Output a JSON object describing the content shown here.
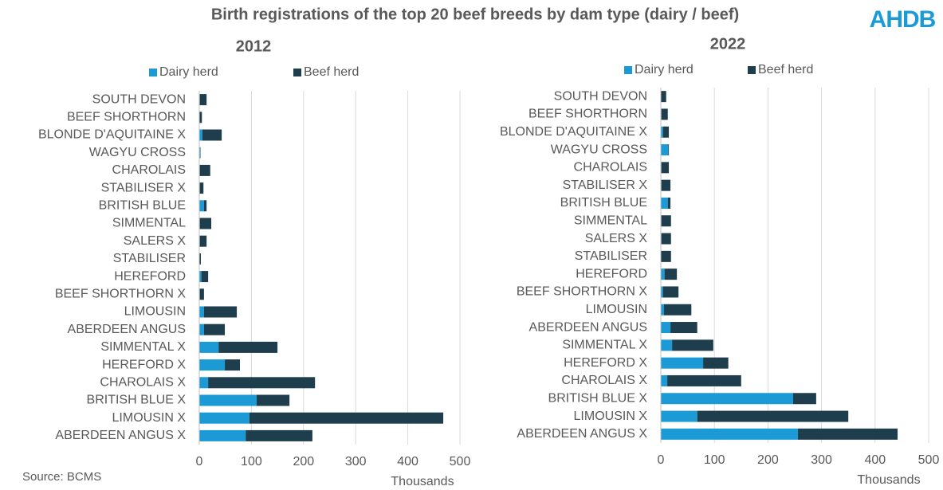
{
  "title": "Birth registrations of the top 20 beef breeds by dam type (dairy / beef)",
  "logo": "AHDB",
  "source": "Source: BCMS",
  "chart_data": [
    {
      "type": "stacked-barh",
      "title": "2012",
      "xlabel": "Thousands",
      "categories": [
        "SOUTH DEVON",
        "BEEF SHORTHORN",
        "BLONDE D'AQUITAINE X",
        "WAGYU CROSS",
        "CHAROLAIS",
        "STABILISER X",
        "BRITISH BLUE",
        "SIMMENTAL",
        "SALERS X",
        "STABILISER",
        "HEREFORD",
        "BEEF SHORTHORN X",
        "LIMOUSIN",
        "ABERDEEN ANGUS",
        "SIMMENTAL X",
        "HEREFORD X",
        "CHAROLAIS X",
        "BRITISH BLUE X",
        "LIMOUSIN X",
        "ABERDEEN ANGUS X"
      ],
      "series": [
        {
          "name": "Dairy herd",
          "color": "#1b9ad6",
          "values": [
            1,
            0,
            6,
            2,
            1,
            1,
            9,
            1,
            1,
            0,
            4,
            1,
            9,
            9,
            37,
            49,
            17,
            110,
            96,
            89
          ]
        },
        {
          "name": "Beef herd",
          "color": "#1f3e4d",
          "values": [
            13,
            5,
            37,
            0.5,
            20,
            7,
            5,
            22,
            13,
            3,
            13,
            8,
            63,
            40,
            113,
            29,
            205,
            63,
            372,
            128
          ]
        }
      ],
      "xlim": [
        0,
        500
      ],
      "xticks": [
        0,
        100,
        200,
        300,
        400,
        500
      ],
      "grid": true
    },
    {
      "type": "stacked-barh",
      "title": "2022",
      "xlabel": "Thousands",
      "categories": [
        "SOUTH DEVON",
        "BEEF SHORTHORN",
        "BLONDE D'AQUITAINE X",
        "WAGYU CROSS",
        "CHAROLAIS",
        "STABILISER X",
        "BRITISH BLUE",
        "SIMMENTAL",
        "SALERS X",
        "STABILISER",
        "HEREFORD",
        "BEEF SHORTHORN X",
        "LIMOUSIN",
        "ABERDEEN ANGUS",
        "SIMMENTAL X",
        "HEREFORD X",
        "CHAROLAIS X",
        "BRITISH BLUE X",
        "LIMOUSIN X",
        "ABERDEEN ANGUS X"
      ],
      "series": [
        {
          "name": "Dairy herd",
          "color": "#1b9ad6",
          "values": [
            0,
            1,
            4,
            14,
            1,
            1,
            13,
            1,
            1,
            0,
            7,
            4,
            6,
            18,
            21,
            79,
            12,
            247,
            68,
            256
          ]
        },
        {
          "name": "Beef herd",
          "color": "#1f3e4d",
          "values": [
            10,
            12,
            11,
            1,
            14,
            17,
            5,
            18,
            18,
            19,
            23,
            29,
            51,
            50,
            77,
            47,
            138,
            43,
            282,
            186
          ]
        }
      ],
      "xlim": [
        0,
        500
      ],
      "xticks": [
        0,
        100,
        200,
        300,
        400,
        500
      ],
      "grid": true
    }
  ]
}
